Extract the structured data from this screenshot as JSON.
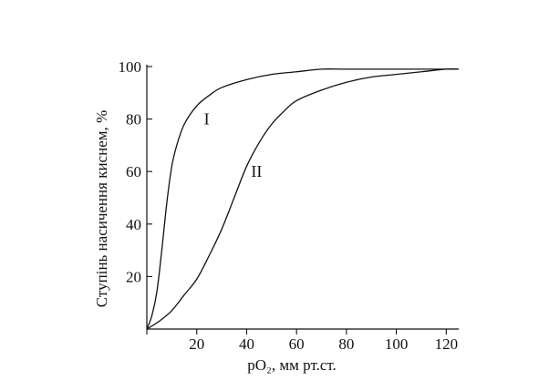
{
  "chart_data": {
    "type": "line",
    "xlabel": "pO₂, мм рт.ст.",
    "ylabel": "Ступінь насичення киснем, %",
    "xlim": [
      0,
      125
    ],
    "ylim": [
      0,
      100
    ],
    "xticks": [
      20,
      40,
      60,
      80,
      100,
      120
    ],
    "yticks": [
      20,
      40,
      60,
      80,
      100
    ],
    "grid": false,
    "series": [
      {
        "name": "I",
        "x": [
          0,
          2,
          4,
          6,
          8,
          10,
          12,
          15,
          20,
          25,
          30,
          40,
          50,
          60,
          70,
          80,
          100,
          120,
          125
        ],
        "y": [
          0,
          5,
          14,
          30,
          48,
          62,
          70,
          78,
          85,
          89,
          92,
          95,
          97,
          98,
          99,
          99,
          99,
          99,
          99
        ]
      },
      {
        "name": "II",
        "x": [
          0,
          5,
          10,
          15,
          20,
          25,
          30,
          35,
          40,
          45,
          50,
          55,
          60,
          70,
          80,
          90,
          100,
          110,
          120,
          125
        ],
        "y": [
          0,
          3,
          7,
          13,
          19,
          28,
          38,
          50,
          62,
          71,
          78,
          83,
          87,
          91,
          94,
          96,
          97,
          98,
          99,
          99
        ]
      }
    ]
  }
}
